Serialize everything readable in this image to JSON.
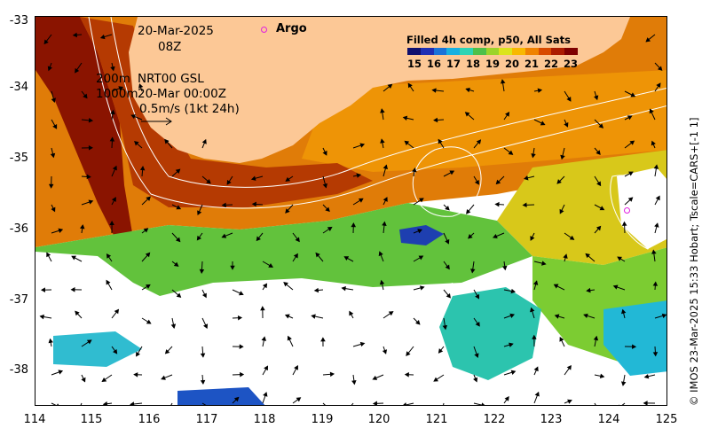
{
  "map": {
    "lon_range": [
      114,
      125
    ],
    "lat_range": [
      -38.5,
      -33
    ],
    "x_ticks": [
      "114",
      "115",
      "116",
      "117",
      "118",
      "119",
      "120",
      "121",
      "122",
      "123",
      "124",
      "125"
    ],
    "y_ticks": [
      "-33",
      "-34",
      "-35",
      "-36",
      "-37",
      "-38"
    ],
    "colors": {
      "land": "#fcc896",
      "frame": "#000000"
    }
  },
  "annotations": {
    "date": "20-Mar-2025",
    "time": "08Z",
    "contour_200": "200m",
    "contour_1000": "1000m",
    "product": "NRT00 GSL",
    "product_time": "20-Mar 00:00Z",
    "arrow_scale": "0.5m/s (1kt 24h)"
  },
  "legend": {
    "title": "Filled 4h comp, p50, All Sats",
    "ticks": [
      "15",
      "16",
      "17",
      "18",
      "19",
      "20",
      "21",
      "22",
      "23"
    ],
    "colors": [
      "#10106e",
      "#1f2fb4",
      "#1b73d8",
      "#18b0e0",
      "#2fd4b4",
      "#4ec04a",
      "#9cd42a",
      "#dce41c",
      "#f8b800",
      "#f08200",
      "#d84a00",
      "#ac1c00",
      "#7e0000"
    ]
  },
  "argo": {
    "label": "Argo",
    "marker_color": "#e020e0"
  },
  "credit": "© IMOS 23-Mar-2025 15:33 Hobart; Tscale=CARS+[-1 1]"
}
